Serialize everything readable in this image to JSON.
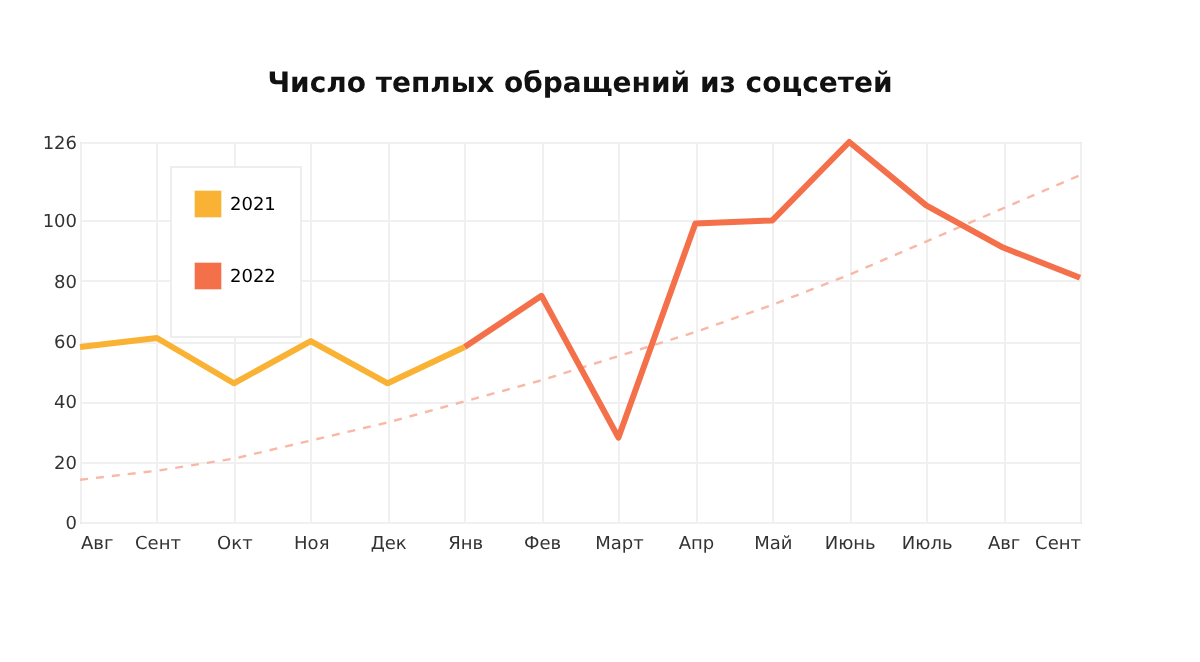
{
  "chart_data": {
    "type": "line",
    "title": "Число теплых обращений из соцсетей",
    "categories": [
      "Авг",
      "Сент",
      "Окт",
      "Ноя",
      "Дек",
      "Янв",
      "Фев",
      "Март",
      "Апр",
      "Май",
      "Июнь",
      "Июль",
      "Авг",
      "Сент"
    ],
    "series": [
      {
        "name": "2021",
        "color": "#f9b233",
        "values": [
          58,
          61,
          46,
          60,
          46,
          58,
          null,
          null,
          null,
          null,
          null,
          null,
          null,
          null
        ]
      },
      {
        "name": "2022",
        "color": "#f4704a",
        "values": [
          null,
          null,
          null,
          null,
          null,
          58,
          75,
          28,
          99,
          100,
          126,
          105,
          91,
          81
        ]
      },
      {
        "type": "line",
        "line_style": "dashed",
        "color": "#f9b8a6",
        "values": [
          14,
          17,
          21,
          27,
          33,
          40,
          47,
          55,
          63,
          72,
          82,
          93,
          104,
          115
        ]
      }
    ],
    "ylim": [
      0,
      126
    ],
    "yticks": [
      0,
      20,
      40,
      60,
      80,
      100,
      126
    ],
    "grid": true,
    "legend": "top left",
    "marker": "none",
    "line_style": "solid"
  }
}
